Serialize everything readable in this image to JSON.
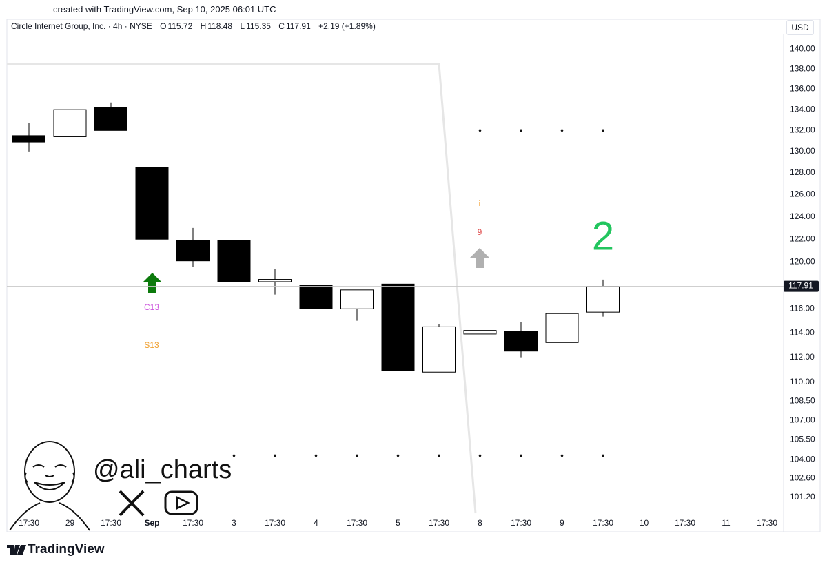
{
  "created": "created with TradingView.com, Sep 10, 2025 06:01 UTC",
  "chart_data": {
    "type": "candlestick",
    "title": "Circle Internet Group, Inc. · 4h · NYSE",
    "ohlc_labels": [
      "O",
      "H",
      "L",
      "C"
    ],
    "change": "+2.19 (+1.89%)",
    "currency": "USD",
    "categories": [
      "17:30",
      "29",
      "17:30",
      "Sep",
      "17:30",
      "3",
      "17:30",
      "4",
      "17:30",
      "5",
      "17:30",
      "8",
      "17:30",
      "9",
      "17:30",
      "10",
      "17:30",
      "11",
      "17:30"
    ],
    "open": [
      131.5,
      131.4,
      134.2,
      128.5,
      121.9,
      121.9,
      118.3,
      118.0,
      116.0,
      118.1,
      110.8,
      113.9,
      114.1,
      113.2,
      115.72,
      null,
      null,
      null,
      null
    ],
    "high": [
      132.7,
      135.9,
      134.7,
      131.7,
      123.0,
      122.3,
      119.4,
      120.3,
      117.6,
      118.8,
      114.7,
      117.8,
      114.9,
      120.7,
      118.48,
      null,
      null,
      null,
      null
    ],
    "low": [
      130.0,
      129.0,
      132.0,
      121.0,
      119.6,
      116.7,
      117.2,
      115.1,
      115.0,
      108.1,
      110.8,
      110.0,
      112.0,
      112.6,
      115.35,
      null,
      null,
      null,
      null
    ],
    "close": [
      130.9,
      134.0,
      132.0,
      122.0,
      120.1,
      118.3,
      118.5,
      116.0,
      117.6,
      110.9,
      114.5,
      114.2,
      112.5,
      115.6,
      117.91,
      null,
      null,
      null,
      null
    ],
    "up_color": "#ffffff",
    "down_color": "#000000",
    "border_color": "#000000",
    "td_resistance": [
      null,
      null,
      null,
      null,
      null,
      null,
      null,
      null,
      null,
      null,
      null,
      132.0,
      132.0,
      132.0,
      132.0,
      null,
      null,
      null,
      null
    ],
    "td_support": [
      null,
      null,
      null,
      null,
      null,
      104.3,
      104.3,
      104.3,
      104.3,
      104.3,
      104.3,
      104.3,
      104.3,
      104.3,
      104.3,
      null,
      null,
      null,
      null
    ],
    "log_scale": true,
    "ylim": [
      98.8,
      141.5
    ],
    "yticks": [
      {
        "value": 140,
        "label": "140.00"
      },
      {
        "value": 138,
        "label": "138.00"
      },
      {
        "value": 136,
        "label": "136.00"
      },
      {
        "value": 134,
        "label": "134.00"
      },
      {
        "value": 132,
        "label": "132.00"
      },
      {
        "value": 130,
        "label": "130.00"
      },
      {
        "value": 128,
        "label": "128.00"
      },
      {
        "value": 126,
        "label": "126.00"
      },
      {
        "value": 124,
        "label": "124.00"
      },
      {
        "value": 122,
        "label": "122.00"
      },
      {
        "value": 120,
        "label": "120.00"
      },
      {
        "value": 116,
        "label": "116.00"
      },
      {
        "value": 114,
        "label": "114.00"
      },
      {
        "value": 112,
        "label": "112.00"
      },
      {
        "value": 110,
        "label": "110.00"
      },
      {
        "value": 108.5,
        "label": "108.50"
      },
      {
        "value": 107,
        "label": "107.00"
      },
      {
        "value": 105.5,
        "label": "105.50"
      },
      {
        "value": 104,
        "label": "104.00"
      },
      {
        "value": 102.6,
        "label": "102.60"
      },
      {
        "value": 101.2,
        "label": "101.20"
      }
    ],
    "grid": false,
    "price_line": true,
    "annotations": [
      {
        "text": "C13",
        "color": "#cc55dd"
      },
      {
        "text": "S13",
        "color": "#f0a030"
      },
      {
        "text": "9",
        "color": "#e05050"
      },
      {
        "text": "i",
        "color": "#f08a00"
      },
      {
        "text": "2",
        "color": "#22c55e"
      }
    ]
  },
  "branding": {
    "handle": "@ali_charts",
    "logo": "TradingView"
  }
}
